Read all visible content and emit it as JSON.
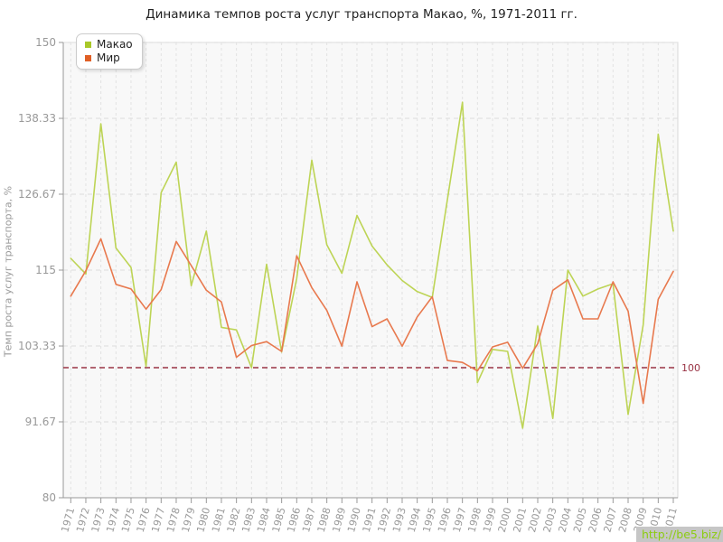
{
  "title": "Динамика темпов роста услуг транспорта Макао, %, 1971-2011 гг.",
  "y_axis_title": "Темп роста услуг транспорта, %",
  "watermark": "http://be5.biz/",
  "baseline_label": "100",
  "legend": [
    {
      "label": "Макао",
      "color": "#a9c829"
    },
    {
      "label": "Мир",
      "color": "#e05f25"
    }
  ],
  "colors": {
    "macao_line": "#bdd455",
    "world_line": "#e8794e",
    "baseline": "#993344",
    "grid_v": "#e2e2e2",
    "grid_h": "#dcdcdc",
    "axis": "#999999",
    "tick_label": "#999999",
    "plot_bg": "#f8f8f8",
    "plot_border": "#d8d8d8"
  },
  "chart_data": {
    "type": "line",
    "title": "Динамика темпов роста услуг транспорта Макао, %, 1971-2011 гг.",
    "xlabel": "",
    "ylabel": "Темп роста услуг транспорта, %",
    "ylim": [
      80,
      150
    ],
    "y_ticks": [
      150,
      138.33,
      126.67,
      115,
      103.33,
      91.67,
      80
    ],
    "baseline": 100,
    "grid": true,
    "legend_position": "top-left",
    "x": [
      1971,
      1972,
      1973,
      1974,
      1975,
      1976,
      1977,
      1978,
      1979,
      1980,
      1981,
      1982,
      1983,
      1984,
      1985,
      1986,
      1987,
      1988,
      1989,
      1990,
      1991,
      1992,
      1993,
      1994,
      1995,
      1996,
      1997,
      1998,
      1999,
      2000,
      2001,
      2002,
      2003,
      2004,
      2005,
      2006,
      2007,
      2008,
      2009,
      2010,
      2011
    ],
    "series": [
      {
        "name": "Макао",
        "values": [
          116.8,
          114.4,
          137.5,
          118.4,
          115.4,
          100.2,
          126.9,
          131.6,
          112.6,
          121.0,
          106.2,
          105.8,
          100.0,
          115.9,
          102.4,
          113.7,
          131.9,
          118.9,
          114.5,
          123.4,
          118.7,
          115.8,
          113.4,
          111.7,
          110.8,
          125.8,
          140.8,
          97.7,
          102.8,
          102.5,
          90.7,
          106.4,
          92.2,
          115.0,
          111.0,
          112.1,
          112.9,
          92.8,
          106.6,
          135.9,
          121.0
        ]
      },
      {
        "name": "Мир",
        "values": [
          111.0,
          114.9,
          119.8,
          112.8,
          112.1,
          109.0,
          112.0,
          119.4,
          115.7,
          111.9,
          110.1,
          101.6,
          103.4,
          104.0,
          102.5,
          117.2,
          112.3,
          108.8,
          103.3,
          113.2,
          106.3,
          107.5,
          103.3,
          107.8,
          110.9,
          101.1,
          100.8,
          99.5,
          103.2,
          103.9,
          99.9,
          103.7,
          111.9,
          113.5,
          107.5,
          107.5,
          113.2,
          108.7,
          94.5,
          110.5,
          114.8
        ]
      }
    ]
  }
}
